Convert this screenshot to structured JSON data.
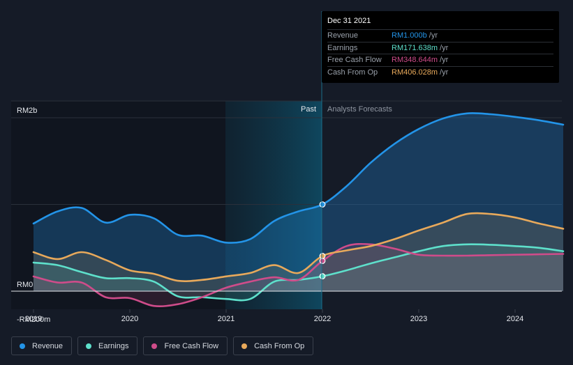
{
  "chart_data": {
    "type": "area",
    "x_ticks": [
      "2019",
      "2020",
      "2021",
      "2022",
      "2023",
      "2024"
    ],
    "y_ticks": [
      "RM2b",
      "RM0",
      "-RM200m"
    ],
    "period_labels": {
      "past": "Past",
      "forecast": "Analysts Forecasts"
    },
    "ylim": [
      -200,
      2200
    ],
    "series": [
      {
        "name": "Revenue",
        "color": "#2394e8",
        "x": [
          2019.0,
          2019.25,
          2019.5,
          2019.75,
          2020.0,
          2020.25,
          2020.5,
          2020.75,
          2021.0,
          2021.25,
          2021.5,
          2021.75,
          2022.0,
          2022.25,
          2022.5,
          2022.75,
          2023.0,
          2023.25,
          2023.5,
          2023.75,
          2024.0,
          2024.25,
          2024.5
        ],
        "values": [
          780,
          920,
          960,
          790,
          880,
          840,
          650,
          640,
          560,
          600,
          810,
          920,
          1000,
          1210,
          1480,
          1700,
          1870,
          1990,
          2050,
          2040,
          2010,
          1970,
          1920
        ]
      },
      {
        "name": "Earnings",
        "color": "#5ee0cb",
        "x": [
          2019.0,
          2019.25,
          2019.5,
          2019.75,
          2020.0,
          2020.25,
          2020.5,
          2020.75,
          2021.0,
          2021.25,
          2021.5,
          2021.75,
          2022.0,
          2022.25,
          2022.5,
          2022.75,
          2023.0,
          2023.25,
          2023.5,
          2023.75,
          2024.0,
          2024.25,
          2024.5
        ],
        "values": [
          330,
          300,
          220,
          150,
          150,
          110,
          -60,
          -70,
          -90,
          -90,
          110,
          130,
          172,
          240,
          320,
          390,
          460,
          520,
          540,
          535,
          520,
          500,
          460
        ]
      },
      {
        "name": "Free Cash Flow",
        "color": "#cf4c8a",
        "x": [
          2019.0,
          2019.25,
          2019.5,
          2019.75,
          2020.0,
          2020.25,
          2020.5,
          2020.75,
          2021.0,
          2021.25,
          2021.5,
          2021.75,
          2022.0,
          2022.25,
          2022.5,
          2022.75,
          2023.0,
          2023.25,
          2023.5,
          2023.75,
          2024.0,
          2024.25,
          2024.5
        ],
        "values": [
          170,
          100,
          100,
          -70,
          -80,
          -170,
          -150,
          -70,
          40,
          110,
          160,
          130,
          349,
          520,
          540,
          490,
          420,
          410,
          410,
          415,
          420,
          425,
          430
        ]
      },
      {
        "name": "Cash From Op",
        "color": "#e8a95b",
        "x": [
          2019.0,
          2019.25,
          2019.5,
          2019.75,
          2020.0,
          2020.25,
          2020.5,
          2020.75,
          2021.0,
          2021.25,
          2021.5,
          2021.75,
          2022.0,
          2022.25,
          2022.5,
          2022.75,
          2023.0,
          2023.25,
          2023.5,
          2023.75,
          2024.0,
          2024.25,
          2024.5
        ],
        "values": [
          450,
          370,
          450,
          360,
          240,
          200,
          120,
          130,
          170,
          210,
          300,
          210,
          406,
          470,
          520,
          600,
          700,
          790,
          890,
          890,
          850,
          780,
          720
        ]
      }
    ]
  },
  "tooltip": {
    "date": "Dec 31 2021",
    "rows": [
      {
        "label": "Revenue",
        "value": "RM1.000b",
        "unit": "/yr",
        "color": "#2394e8"
      },
      {
        "label": "Earnings",
        "value": "RM171.638m",
        "unit": "/yr",
        "color": "#5ee0cb"
      },
      {
        "label": "Free Cash Flow",
        "value": "RM348.644m",
        "unit": "/yr",
        "color": "#cf4c8a"
      },
      {
        "label": "Cash From Op",
        "value": "RM406.028m",
        "unit": "/yr",
        "color": "#e8a95b"
      }
    ]
  },
  "legend": [
    {
      "label": "Revenue",
      "color": "#2394e8"
    },
    {
      "label": "Earnings",
      "color": "#5ee0cb"
    },
    {
      "label": "Free Cash Flow",
      "color": "#cf4c8a"
    },
    {
      "label": "Cash From Op",
      "color": "#e8a95b"
    }
  ]
}
